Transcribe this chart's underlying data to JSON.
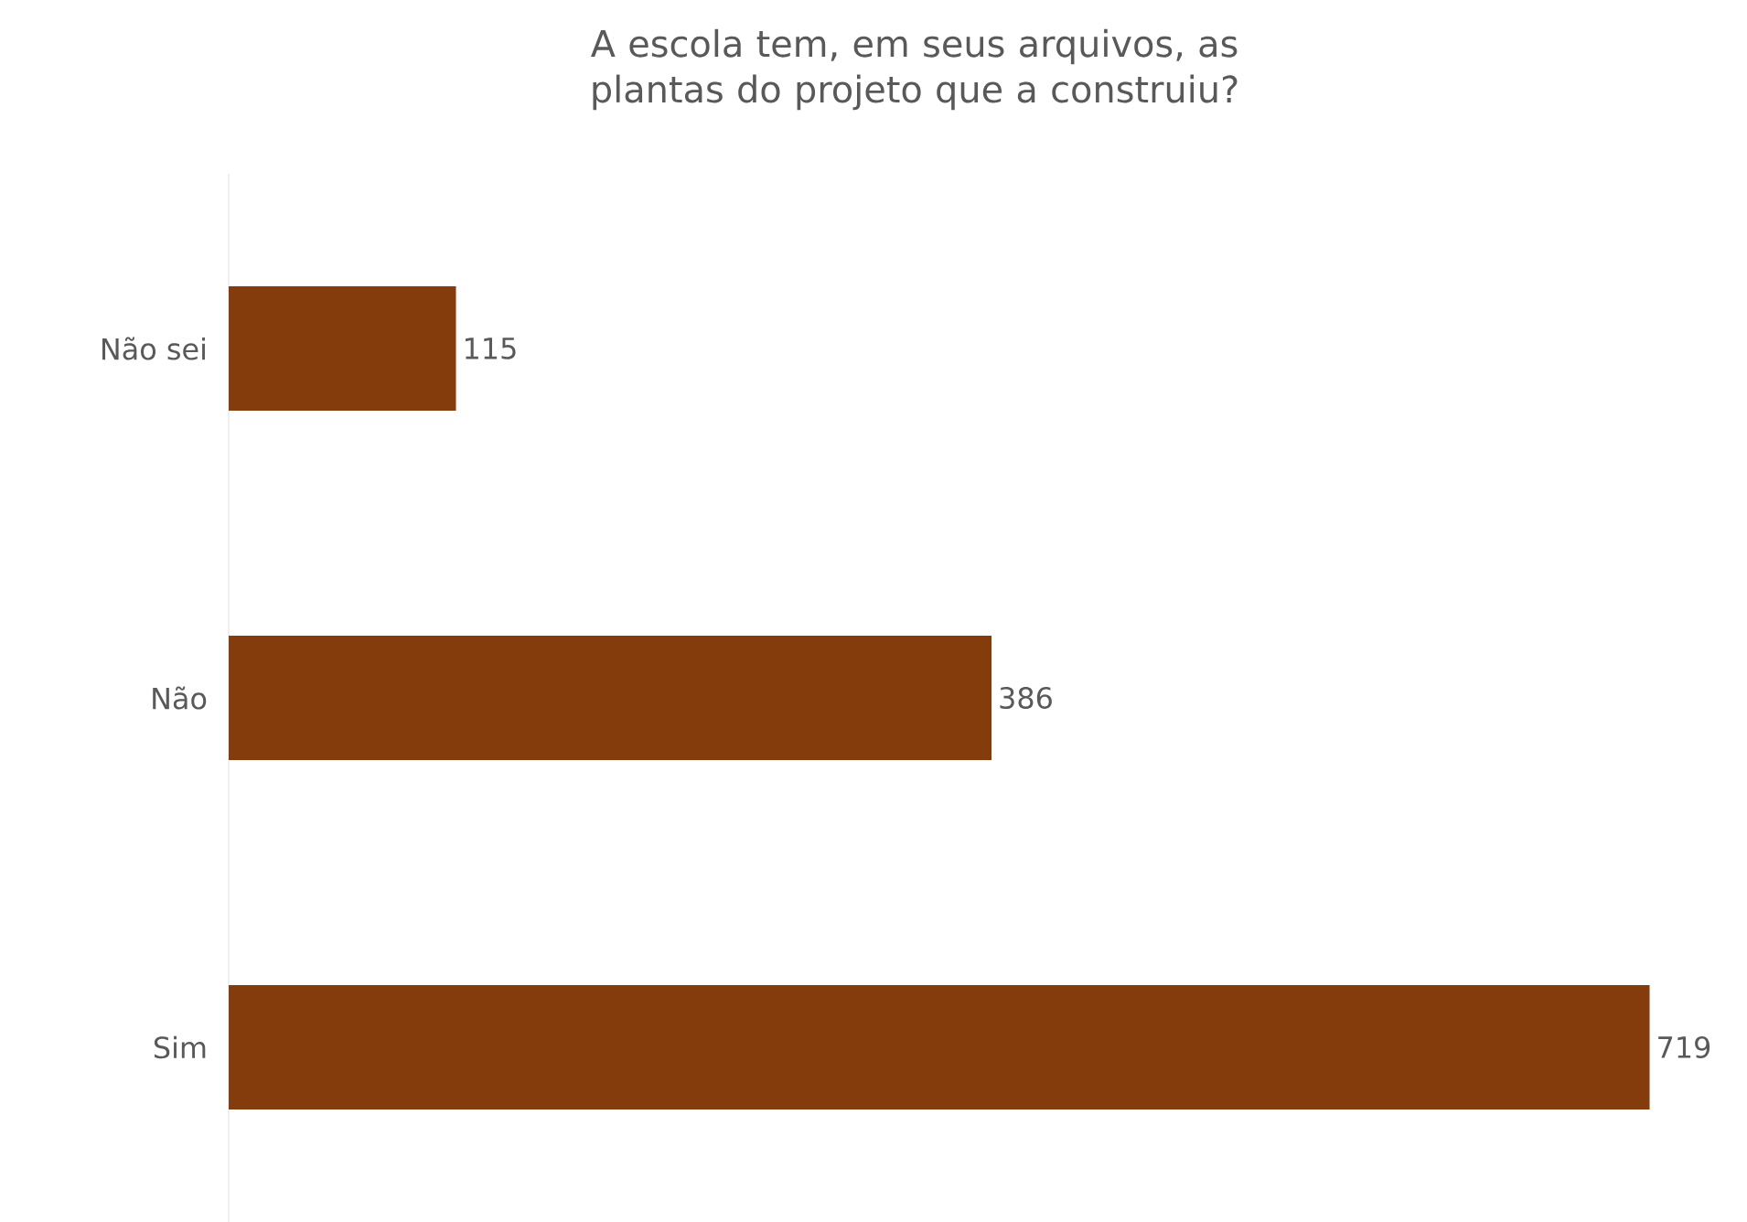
{
  "chart_data": {
    "type": "bar",
    "orientation": "horizontal",
    "title": "A escola tem, em seus arquivos, as plantas do projeto que a construiu?",
    "categories": [
      "Não sei",
      "Não",
      "Sim"
    ],
    "values": [
      115,
      386,
      719
    ],
    "color": "#843c0c",
    "data_labels": true
  }
}
